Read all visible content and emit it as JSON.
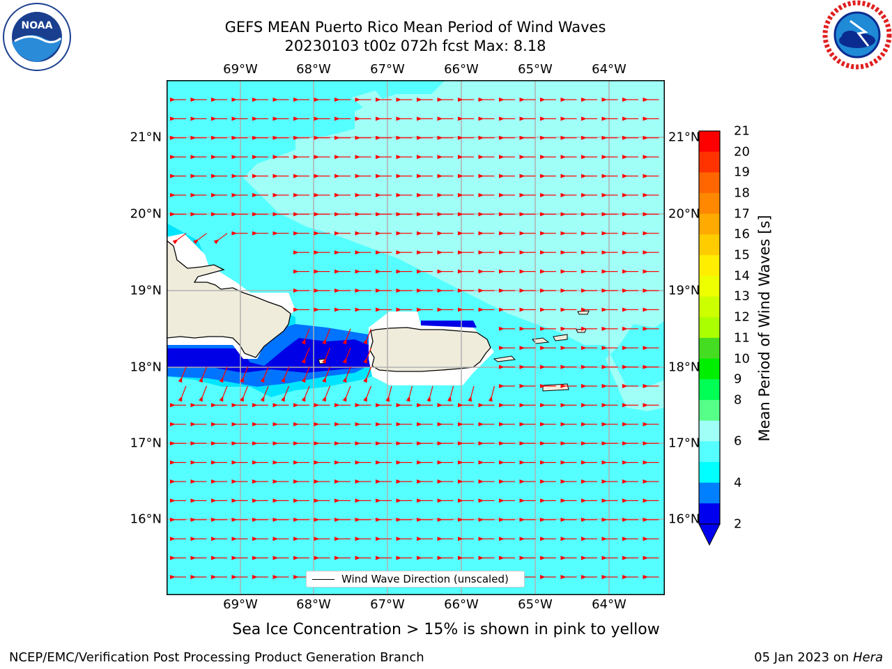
{
  "header": {
    "title_line1": "GEFS MEAN Puerto Rico Mean Period of Wind Waves",
    "title_line2": "20230103 t00z 072h fcst   Max: 8.18"
  },
  "logos": {
    "noaa_text": "NOAA",
    "noaa_ring": "NATIONAL OCEANIC AND ATMOSPHERIC ADMINISTRATION · U.S. DEPARTMENT OF COMMERCE",
    "nws_ring": "NATIONAL WEATHER SERVICE"
  },
  "map": {
    "lon_labels": [
      "69°W",
      "68°W",
      "67°W",
      "66°W",
      "65°W",
      "64°W"
    ],
    "lat_labels": [
      "21°N",
      "20°N",
      "19°N",
      "18°N",
      "17°N",
      "16°N"
    ],
    "wind_wave_direction": "westward (toward west), southwest near Puerto Rico and Hispaniola coasts",
    "colors": {
      "period_6_8": "#55ffff",
      "period_8_9": "#a0fff6",
      "period_4_6": "#00e5ff",
      "period_2_4": "#0073ff",
      "period_lt_2": "#0000e6",
      "land": "#efecdc",
      "arrows": "#ff0000",
      "grid": "#b0b0b0"
    }
  },
  "legend": {
    "label": "Wind Wave Direction (unscaled)"
  },
  "colorbar": {
    "title": "Mean Period of Wind Waves [s]",
    "ticks": [
      "21",
      "20",
      "19",
      "18",
      "17",
      "16",
      "15",
      "14",
      "13",
      "12",
      "11",
      "10",
      "9",
      "8",
      "6",
      "4",
      "2"
    ],
    "colors_top_to_bottom": [
      "#ff0000",
      "#ff3300",
      "#ff6600",
      "#ff8800",
      "#ffaa00",
      "#ffcc00",
      "#ffee00",
      "#eeff00",
      "#ccff00",
      "#aaff00",
      "#44dd22",
      "#00ee00",
      "#00ff55",
      "#55ff88",
      "#a0fff6",
      "#55ffff",
      "#00ffff",
      "#0080ff",
      "#0000ee"
    ]
  },
  "caption": "Sea Ice Concentration > 15% is shown in pink to yellow",
  "footer": {
    "left": "NCEP/EMC/Verification Post Processing Product Generation Branch",
    "date": "05 Jan 2023 on",
    "machine": "Hera"
  }
}
